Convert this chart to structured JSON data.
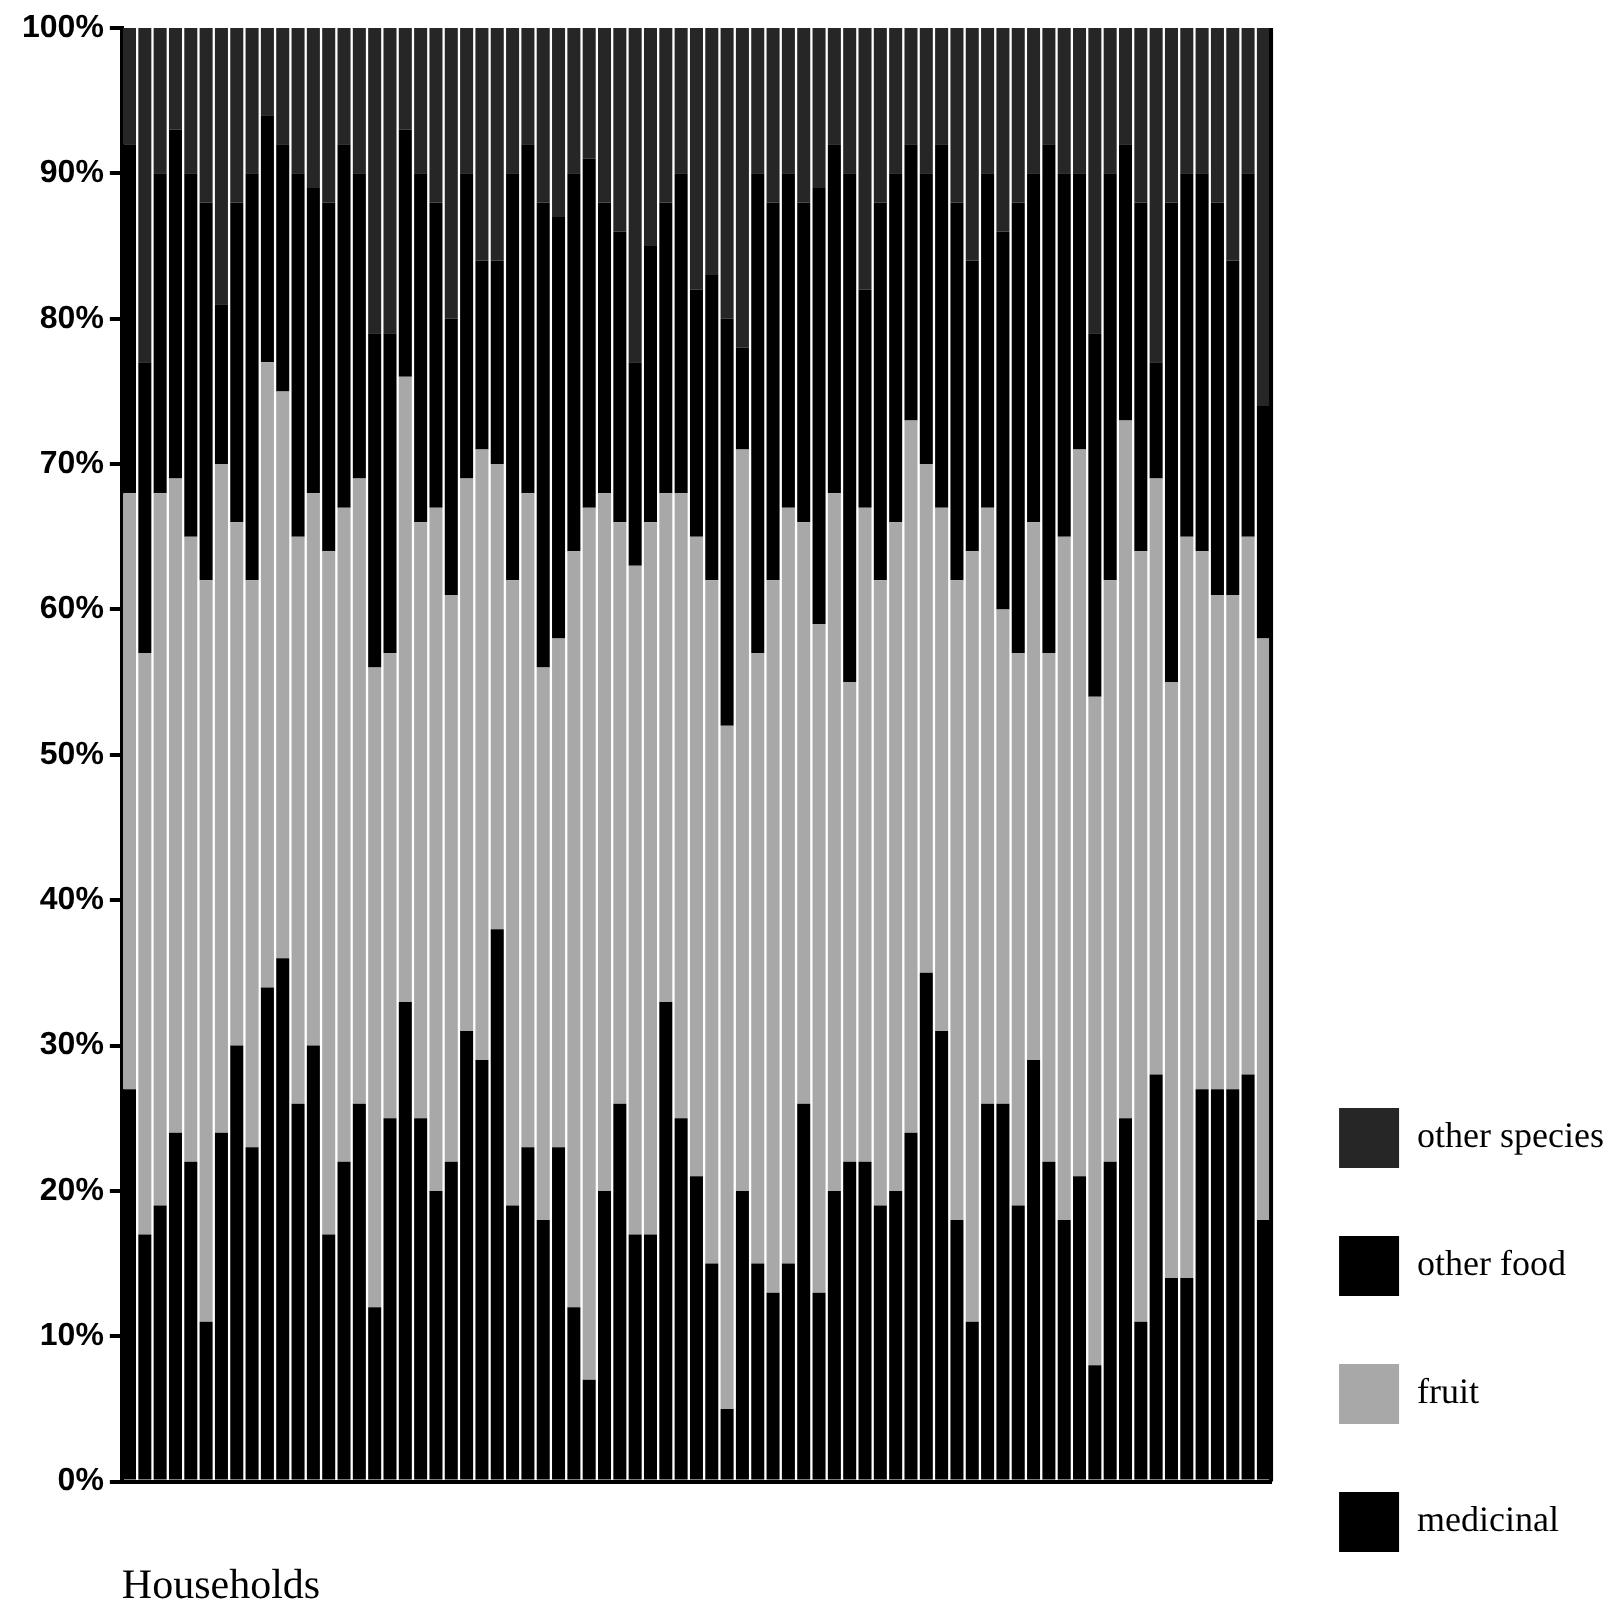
{
  "chart_data": {
    "type": "bar",
    "stacked": true,
    "xlabel": "Households",
    "categories": [
      null,
      null,
      null,
      null,
      null,
      null,
      null,
      null,
      null,
      null,
      null,
      null,
      null,
      null,
      null,
      null,
      null,
      null,
      null,
      null,
      null,
      null,
      null,
      null,
      null,
      null,
      null,
      null,
      null,
      null,
      null,
      null,
      null,
      null,
      null,
      null,
      null,
      null,
      null,
      null,
      null,
      null,
      null,
      null,
      null,
      null,
      null,
      null,
      null,
      null,
      null,
      null,
      null,
      null,
      null,
      null,
      null,
      null,
      null,
      null,
      null,
      null,
      null,
      null,
      null,
      null,
      null,
      null,
      null,
      null,
      null,
      null,
      null,
      null,
      null
    ],
    "series": [
      {
        "name": "medicinal",
        "color": "#000000",
        "values": [
          27,
          17,
          19,
          24,
          22,
          11,
          24,
          30,
          23,
          34,
          36,
          26,
          30,
          17,
          22,
          26,
          12,
          25,
          33,
          25,
          20,
          22,
          31,
          29,
          38,
          19,
          23,
          18,
          23,
          12,
          7,
          20,
          26,
          17,
          17,
          33,
          25,
          21,
          15,
          5,
          20,
          15,
          13,
          15,
          26,
          13,
          20,
          22,
          22,
          19,
          20,
          24,
          35,
          31,
          18,
          11,
          26,
          26,
          19,
          29,
          22,
          18,
          21,
          8,
          22,
          25,
          11,
          28,
          14,
          14,
          27,
          27,
          27,
          28,
          18
        ]
      },
      {
        "name": "fruit",
        "color": "#a8a8a8",
        "values": [
          41,
          40,
          49,
          45,
          43,
          51,
          46,
          36,
          39,
          43,
          39,
          39,
          38,
          47,
          45,
          43,
          44,
          32,
          43,
          41,
          47,
          39,
          38,
          42,
          32,
          43,
          45,
          38,
          35,
          52,
          60,
          48,
          40,
          46,
          49,
          35,
          43,
          44,
          47,
          47,
          51,
          42,
          49,
          52,
          40,
          46,
          48,
          33,
          45,
          43,
          46,
          49,
          35,
          36,
          44,
          53,
          41,
          34,
          38,
          37,
          35,
          47,
          50,
          46,
          40,
          48,
          53,
          41,
          41,
          51,
          37,
          34,
          34,
          37,
          40
        ]
      },
      {
        "name": "other food",
        "color": "#000000",
        "values": [
          24,
          20,
          22,
          24,
          25,
          26,
          11,
          22,
          28,
          17,
          17,
          25,
          21,
          24,
          25,
          21,
          23,
          22,
          17,
          24,
          21,
          19,
          21,
          13,
          14,
          28,
          24,
          32,
          29,
          26,
          24,
          20,
          20,
          14,
          19,
          20,
          22,
          17,
          21,
          28,
          7,
          33,
          26,
          23,
          22,
          30,
          24,
          35,
          15,
          26,
          24,
          19,
          20,
          25,
          26,
          20,
          23,
          26,
          31,
          24,
          35,
          25,
          19,
          25,
          28,
          19,
          24,
          8,
          33,
          25,
          26,
          27,
          23,
          25,
          16
        ]
      },
      {
        "name": "other species",
        "color": "#262626",
        "values": [
          8,
          23,
          10,
          7,
          10,
          12,
          19,
          12,
          10,
          6,
          8,
          10,
          11,
          12,
          8,
          10,
          21,
          21,
          7,
          10,
          12,
          20,
          10,
          16,
          16,
          10,
          8,
          12,
          13,
          10,
          9,
          12,
          14,
          23,
          15,
          12,
          10,
          18,
          17,
          20,
          22,
          10,
          12,
          10,
          12,
          11,
          8,
          10,
          18,
          12,
          10,
          8,
          10,
          8,
          12,
          16,
          10,
          14,
          12,
          10,
          8,
          10,
          10,
          21,
          10,
          8,
          12,
          23,
          12,
          10,
          10,
          12,
          16,
          10,
          26
        ]
      }
    ],
    "ylim": [
      0,
      100
    ],
    "yticks": [
      {
        "value": 0,
        "label": "0%"
      },
      {
        "value": 10,
        "label": "10%"
      },
      {
        "value": 20,
        "label": "20%"
      },
      {
        "value": 30,
        "label": "30%"
      },
      {
        "value": 40,
        "label": "40%"
      },
      {
        "value": 50,
        "label": "50%"
      },
      {
        "value": 60,
        "label": "60%"
      },
      {
        "value": 70,
        "label": "70%"
      },
      {
        "value": 80,
        "label": "80%"
      },
      {
        "value": 90,
        "label": "90%"
      },
      {
        "value": 100,
        "label": "100%"
      }
    ],
    "tick_labels": "y",
    "grid": false,
    "legend": "right"
  }
}
